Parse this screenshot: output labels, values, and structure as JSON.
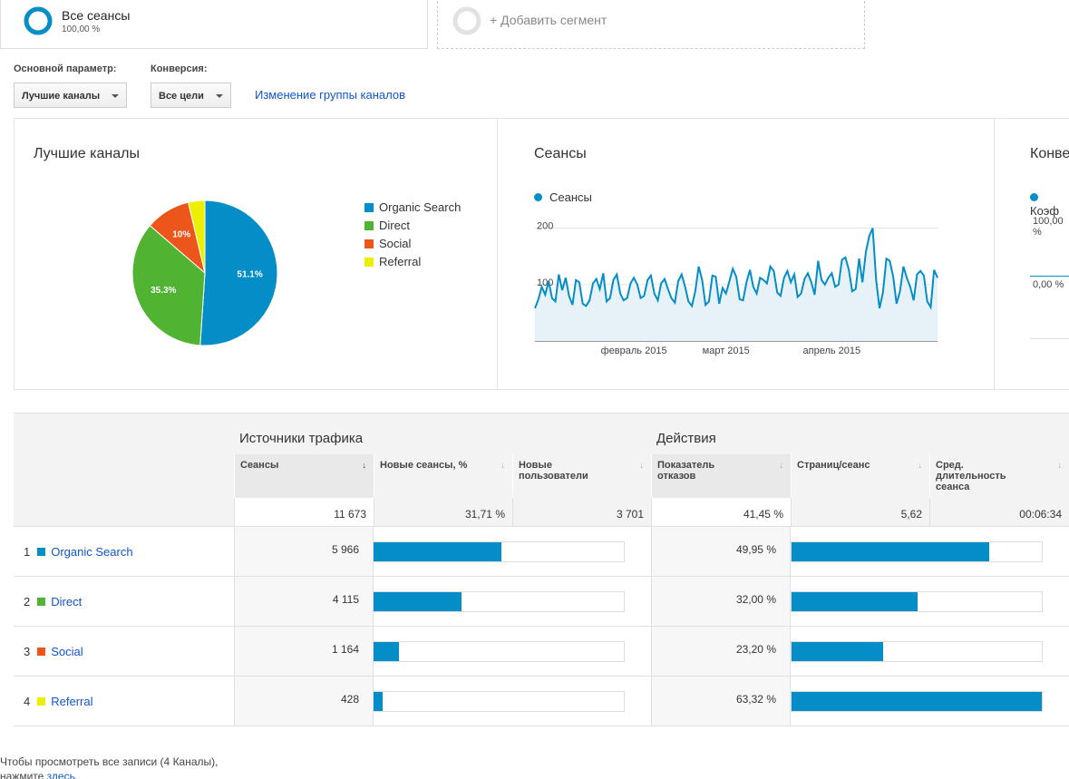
{
  "segments": {
    "active": {
      "title": "Все сеансы",
      "percent": "100,00 %"
    },
    "add_label": "+ Добавить сегмент"
  },
  "controls": {
    "primary_label": "Основной параметр:",
    "primary_value": "Лучшие каналы",
    "conversion_label": "Конверсия:",
    "conversion_value": "Все цели",
    "change_group_link": "Изменение группы каналов"
  },
  "colors": {
    "organic": "#058dc7",
    "direct": "#50b432",
    "social": "#ed561b",
    "referral": "#edef00",
    "bar": "#058dc7",
    "line": "#058dc7",
    "area": "#e6f2f8"
  },
  "panels": {
    "pie_title": "Лучшие каналы",
    "sessions_title": "Сеансы",
    "sessions_legend": "Сеансы",
    "conversion_title": "Конве",
    "conversion_legend": "Коэф",
    "conversion_ticks": [
      "100,00 %",
      "0,00 %"
    ]
  },
  "chart_data": [
    {
      "type": "pie",
      "title": "Лучшие каналы",
      "legend_position": "right",
      "slices": [
        {
          "name": "Organic Search",
          "value": 51.1,
          "label": "51.1%"
        },
        {
          "name": "Direct",
          "value": 35.3,
          "label": "35.3%"
        },
        {
          "name": "Social",
          "value": 10.0,
          "label": "10%"
        },
        {
          "name": "Referral",
          "value": 3.7,
          "label": ""
        }
      ]
    },
    {
      "type": "area",
      "title": "Сеансы",
      "series": [
        {
          "name": "Сеансы",
          "values": [
            58,
            74,
            96,
            82,
            106,
            76,
            70,
            118,
            90,
            112,
            80,
            64,
            108,
            104,
            66,
            62,
            72,
            102,
            110,
            92,
            120,
            70,
            76,
            108,
            118,
            84,
            72,
            76,
            102,
            112,
            100,
            76,
            80,
            108,
            116,
            84,
            72,
            102,
            110,
            92,
            76,
            68,
            106,
            118,
            96,
            70,
            62,
            88,
            132,
            108,
            64,
            70,
            116,
            114,
            66,
            94,
            84,
            106,
            128,
            114,
            74,
            72,
            104,
            126,
            96,
            84,
            112,
            108,
            102,
            132,
            124,
            86,
            80,
            112,
            124,
            104,
            118,
            78,
            84,
            110,
            120,
            104,
            82,
            142,
            108,
            100,
            112,
            120,
            96,
            100,
            144,
            148,
            126,
            88,
            92,
            146,
            104,
            158,
            186,
            200,
            108,
            58,
            86,
            146,
            142,
            114,
            66,
            88,
            132,
            112,
            96,
            72,
            118,
            124,
            116,
            70,
            60,
            126,
            112
          ]
        }
      ],
      "y_ticks": [
        100,
        200
      ],
      "ylim": [
        0,
        225
      ],
      "x_ticks": [
        {
          "label": "февраль 2015",
          "index": 29
        },
        {
          "label": "март 2015",
          "index": 56
        },
        {
          "label": "апрель 2015",
          "index": 87
        }
      ],
      "grid": true
    }
  ],
  "table": {
    "group1": "Источники трафика",
    "group2": "Действия",
    "columns": [
      "Сеансы",
      "Новые сеансы, %",
      "Новые пользователи",
      "Показатель отказов",
      "Страниц/сеанс",
      "Сред. длительность сеанса"
    ],
    "sort_arrow": "↓",
    "totals": [
      "11 673",
      "31,71 %",
      "3 701",
      "41,45 %",
      "5,62",
      "00:06:34"
    ],
    "rows": [
      {
        "rank": "1",
        "name": "Organic Search",
        "sessions": "5 966",
        "sessions_fraction": 0.511,
        "bounce": "49,95 %",
        "bounce_fraction": 0.789
      },
      {
        "rank": "2",
        "name": "Direct",
        "sessions": "4 115",
        "sessions_fraction": 0.353,
        "bounce": "32,00 %",
        "bounce_fraction": 0.505
      },
      {
        "rank": "3",
        "name": "Social",
        "sessions": "1 164",
        "sessions_fraction": 0.1,
        "bounce": "23,20 %",
        "bounce_fraction": 0.366
      },
      {
        "rank": "4",
        "name": "Referral",
        "sessions": "428",
        "sessions_fraction": 0.037,
        "bounce": "63,32 %",
        "bounce_fraction": 1.0
      }
    ]
  },
  "footer": {
    "line1": "Чтобы просмотреть все записи (4 Каналы),",
    "line2_prefix": "нажмите ",
    "link": "здесь",
    "line2_suffix": "."
  }
}
